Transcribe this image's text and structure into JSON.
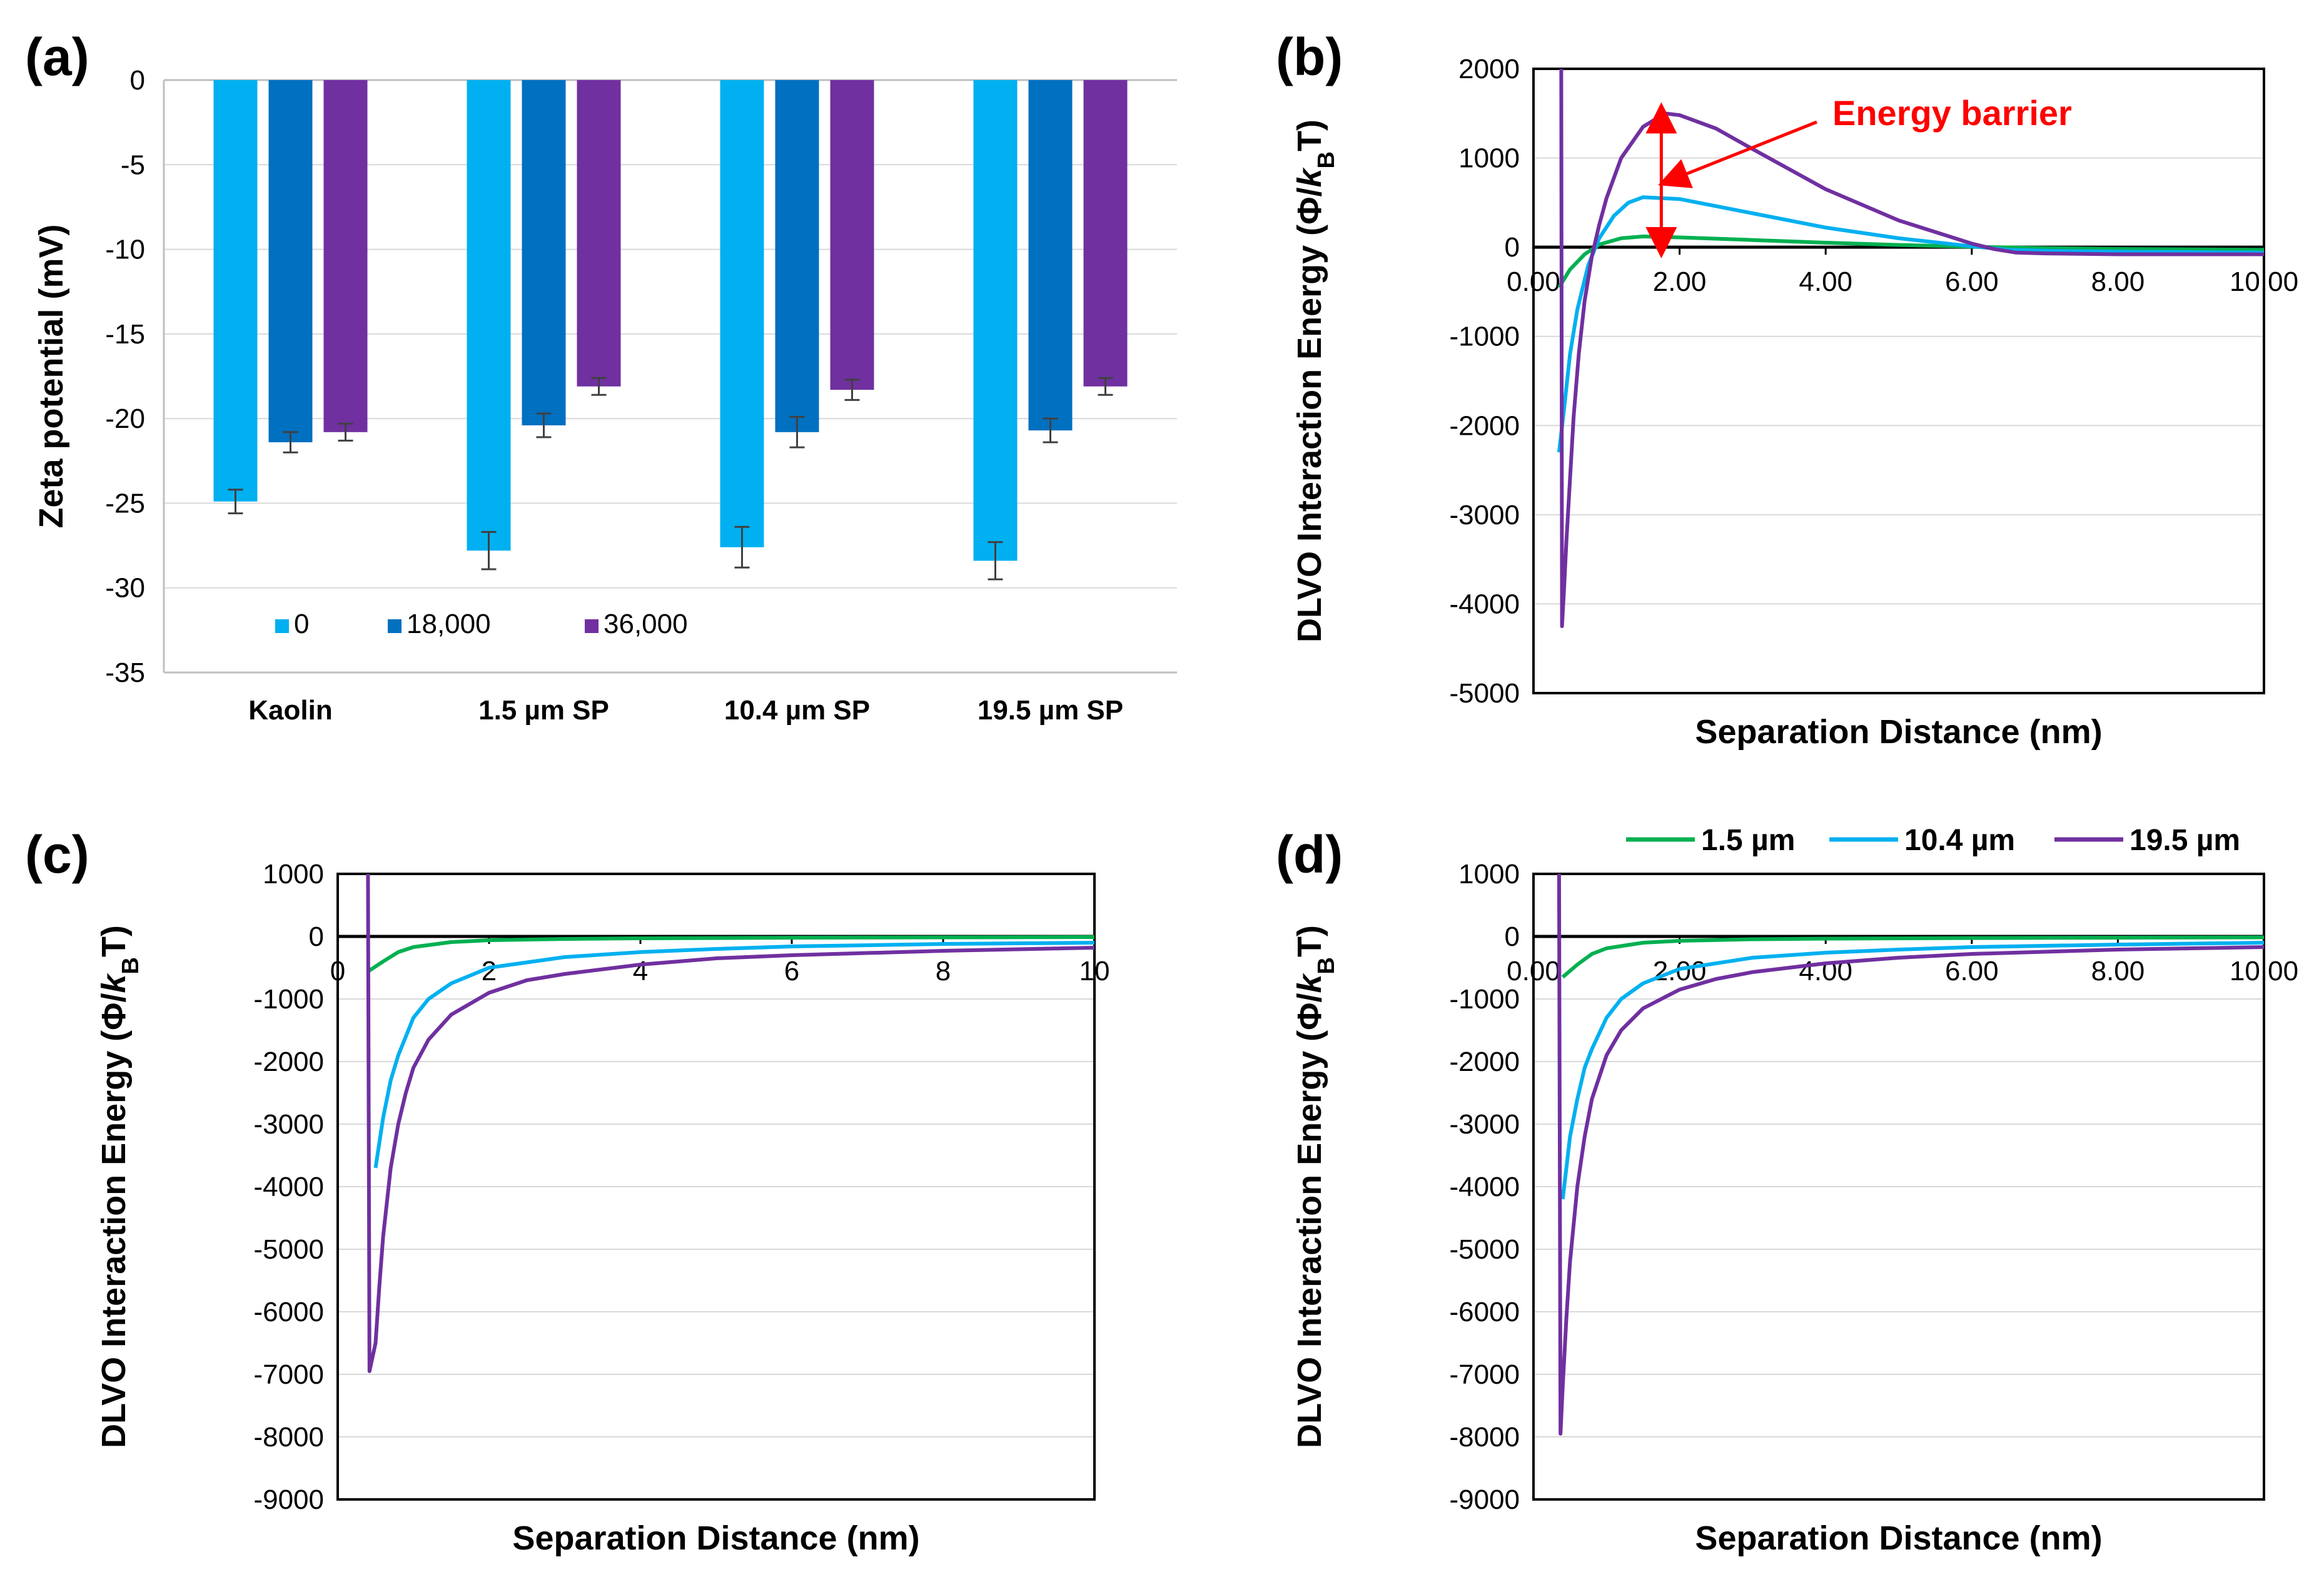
{
  "colors": {
    "c0": "#00b0f0",
    "c18000": "#0070c0",
    "c36000": "#7030a0",
    "green": "#00b050",
    "cyan": "#00b0f0",
    "purple": "#7030a0",
    "red": "#ff0000"
  },
  "chart_data": [
    {
      "id": "a",
      "label": "(a)",
      "type": "bar",
      "ylabel": "Zeta potential (mV)",
      "xlabel": "",
      "ylim": [
        -35,
        0
      ],
      "yticks": [
        0,
        -5,
        -10,
        -15,
        -20,
        -25,
        -30,
        -35
      ],
      "categories": [
        "Kaolin",
        "1.5 µm SP",
        "10.4 µm SP",
        "19.5 µm SP"
      ],
      "series": [
        {
          "name": "0",
          "color": "#00b0f0",
          "values": [
            -24.9,
            -27.8,
            -27.6,
            -28.4
          ],
          "errors": [
            0.7,
            1.1,
            1.2,
            1.1
          ]
        },
        {
          "name": "18,000",
          "color": "#0070c0",
          "values": [
            -21.4,
            -20.4,
            -20.8,
            -20.7
          ],
          "errors": [
            0.6,
            0.7,
            0.9,
            0.7
          ]
        },
        {
          "name": "36,000",
          "color": "#7030a0",
          "values": [
            -20.8,
            -18.1,
            -18.3,
            -18.1
          ],
          "errors": [
            0.5,
            0.5,
            0.6,
            0.5
          ]
        }
      ]
    },
    {
      "id": "b",
      "label": "(b)",
      "type": "line",
      "ylabel": "DLVO Interaction Energy (Φ/kBT)",
      "ylabel_parts": {
        "pre": "DLVO Interaction Energy (Φ/",
        "k": "k",
        "sub": "B",
        "post": "T)"
      },
      "xlabel": "Separation Distance (nm)",
      "xlim": [
        0,
        10
      ],
      "ylim": [
        -5000,
        2000
      ],
      "xticks": [
        0,
        2,
        4,
        6,
        8,
        10
      ],
      "xtick_labels": [
        "0.00",
        "2.00",
        "4.00",
        "6.00",
        "8.00",
        "10.00"
      ],
      "yticks": [
        2000,
        1000,
        0,
        -1000,
        -2000,
        -3000,
        -4000,
        -5000
      ],
      "annotation": "Energy barrier",
      "series": [
        {
          "name": "1.5 µm",
          "color": "#00b050",
          "x": [
            0.35,
            0.5,
            0.7,
            0.9,
            1.2,
            1.5,
            2.0,
            3.0,
            4.0,
            5.0,
            6.0,
            7.0,
            8.0,
            10.0
          ],
          "y": [
            -450,
            -250,
            -80,
            30,
            100,
            120,
            110,
            80,
            50,
            25,
            5,
            -10,
            -20,
            -30
          ]
        },
        {
          "name": "10.4 µm",
          "color": "#00b0f0",
          "x": [
            0.35,
            0.42,
            0.5,
            0.6,
            0.75,
            0.9,
            1.1,
            1.3,
            1.5,
            2.0,
            2.5,
            3.0,
            4.0,
            5.0,
            6.0,
            6.5,
            7.0,
            8.0,
            10.0
          ],
          "y": [
            -2300,
            -1800,
            -1200,
            -700,
            -200,
            100,
            350,
            500,
            560,
            540,
            460,
            380,
            220,
            100,
            10,
            -30,
            -40,
            -50,
            -60
          ]
        },
        {
          "name": "19.5 µm",
          "color": "#7030a0",
          "x": [
            0.38,
            0.39,
            0.42,
            0.45,
            0.5,
            0.55,
            0.62,
            0.7,
            0.8,
            0.9,
            1.0,
            1.2,
            1.5,
            1.8,
            2.0,
            2.5,
            3.0,
            4.0,
            5.0,
            6.0,
            6.3,
            6.6,
            7.0,
            8.0,
            10.0
          ],
          "y": [
            2000,
            -4250,
            -3800,
            -3300,
            -2600,
            -1900,
            -1200,
            -600,
            -100,
            250,
            550,
            1000,
            1350,
            1500,
            1480,
            1330,
            1100,
            650,
            300,
            40,
            -20,
            -60,
            -70,
            -80,
            -80
          ]
        }
      ]
    },
    {
      "id": "c",
      "label": "(c)",
      "type": "line",
      "ylabel": "DLVO Interaction Energy (Φ/kBT)",
      "ylabel_parts": {
        "pre": "DLVO Interaction Energy (Φ/",
        "k": "k",
        "sub": "B",
        "post": "T)"
      },
      "xlabel": "Separation Distance (nm)",
      "xlim": [
        0,
        10
      ],
      "ylim": [
        -9000,
        1000
      ],
      "xticks": [
        0,
        2,
        4,
        6,
        8,
        10
      ],
      "xtick_labels": [
        "0",
        "2",
        "4",
        "6",
        "8",
        "10"
      ],
      "yticks": [
        1000,
        0,
        -1000,
        -2000,
        -3000,
        -4000,
        -5000,
        -6000,
        -7000,
        -8000,
        -9000
      ],
      "series": [
        {
          "name": "1.5 µm",
          "color": "#00b050",
          "x": [
            0.4,
            0.6,
            0.8,
            1.0,
            1.5,
            2.0,
            3.0,
            4.0,
            6.0,
            8.0,
            10.0
          ],
          "y": [
            -560,
            -400,
            -250,
            -170,
            -90,
            -60,
            -40,
            -30,
            -20,
            -15,
            -10
          ]
        },
        {
          "name": "10.4 µm",
          "color": "#00b0f0",
          "x": [
            0.5,
            0.55,
            0.6,
            0.7,
            0.8,
            1.0,
            1.2,
            1.5,
            2.0,
            3.0,
            4.0,
            5.0,
            6.0,
            8.0,
            10.0
          ],
          "y": [
            -3700,
            -3300,
            -2900,
            -2300,
            -1900,
            -1300,
            -1000,
            -750,
            -500,
            -330,
            -250,
            -200,
            -160,
            -120,
            -100
          ]
        },
        {
          "name": "19.5 µm",
          "color": "#7030a0",
          "x": [
            0.4,
            0.42,
            0.5,
            0.55,
            0.6,
            0.7,
            0.8,
            0.9,
            1.0,
            1.2,
            1.5,
            2.0,
            2.5,
            3.0,
            4.0,
            5.0,
            6.0,
            8.0,
            10.0
          ],
          "y": [
            1000,
            -6950,
            -6500,
            -5600,
            -4800,
            -3700,
            -3000,
            -2500,
            -2100,
            -1650,
            -1250,
            -900,
            -700,
            -600,
            -450,
            -350,
            -300,
            -230,
            -180
          ]
        }
      ]
    },
    {
      "id": "d",
      "label": "(d)",
      "type": "line",
      "ylabel": "DLVO Interaction Energy (Φ/kBT)",
      "ylabel_parts": {
        "pre": "DLVO Interaction Energy (Φ/",
        "k": "k",
        "sub": "B",
        "post": "T)"
      },
      "xlabel": "Separation Distance (nm)",
      "xlim": [
        0,
        10
      ],
      "ylim": [
        -9000,
        1000
      ],
      "xticks": [
        0,
        2,
        4,
        6,
        8,
        10
      ],
      "xtick_labels": [
        "0.00",
        "2.00",
        "4.00",
        "6.00",
        "8.00",
        "10.00"
      ],
      "yticks": [
        1000,
        0,
        -1000,
        -2000,
        -3000,
        -4000,
        -5000,
        -6000,
        -7000,
        -8000,
        -9000
      ],
      "series": [
        {
          "name": "1.5 µm",
          "color": "#00b050",
          "x": [
            0.4,
            0.6,
            0.8,
            1.0,
            1.5,
            2.0,
            3.0,
            4.0,
            6.0,
            8.0,
            10.0
          ],
          "y": [
            -650,
            -450,
            -280,
            -190,
            -100,
            -70,
            -45,
            -35,
            -25,
            -20,
            -15
          ]
        },
        {
          "name": "10.4 µm",
          "color": "#00b0f0",
          "x": [
            0.4,
            0.45,
            0.5,
            0.6,
            0.7,
            0.8,
            1.0,
            1.2,
            1.5,
            2.0,
            3.0,
            4.0,
            5.0,
            6.0,
            8.0,
            10.0
          ],
          "y": [
            -4200,
            -3700,
            -3200,
            -2600,
            -2100,
            -1800,
            -1300,
            -1000,
            -750,
            -520,
            -340,
            -260,
            -210,
            -170,
            -130,
            -100
          ]
        },
        {
          "name": "19.5 µm",
          "color": "#7030a0",
          "x": [
            0.35,
            0.37,
            0.4,
            0.45,
            0.5,
            0.6,
            0.7,
            0.8,
            1.0,
            1.2,
            1.5,
            2.0,
            2.5,
            3.0,
            4.0,
            5.0,
            6.0,
            8.0,
            10.0
          ],
          "y": [
            1000,
            -7950,
            -7200,
            -6100,
            -5200,
            -4000,
            -3200,
            -2600,
            -1900,
            -1500,
            -1150,
            -850,
            -680,
            -570,
            -430,
            -340,
            -280,
            -210,
            -170
          ]
        }
      ]
    }
  ]
}
